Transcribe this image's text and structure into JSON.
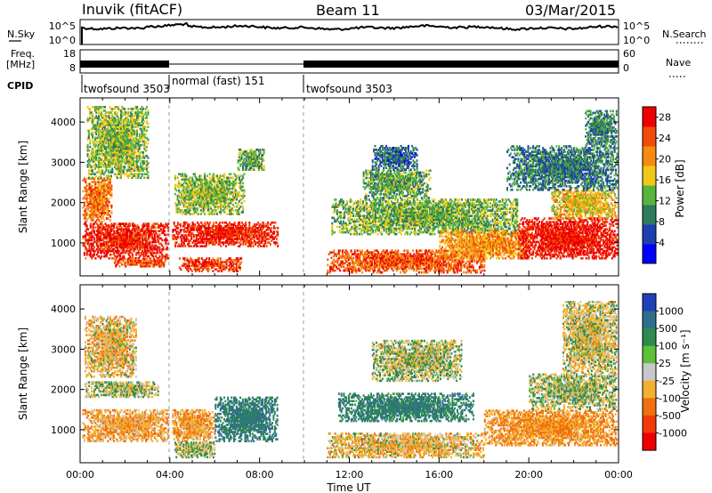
{
  "header": {
    "station": "Inuvik (fitACF)",
    "beam": "Beam 11",
    "date": "03/Mar/2015"
  },
  "left_labels": {
    "nsky": "N.Sky",
    "freq": "Freq.",
    "freq_unit": "[MHz]",
    "cpid": "CPID"
  },
  "right_labels": {
    "nsearch": "N.Search",
    "nave": "Nave"
  },
  "nsky_ticks": [
    "10^5",
    "10^0"
  ],
  "nsearch_ticks": [
    "10^5",
    "10^0"
  ],
  "freq_ticks": [
    "18",
    "8"
  ],
  "nave_ticks": [
    "60",
    "0"
  ],
  "cpid_segments": [
    {
      "label": "twofsound 3503",
      "start_hour": 0.0,
      "end_hour": 4.0
    },
    {
      "label": "normal (fast) 151",
      "start_hour": 4.0,
      "end_hour": 10.0
    },
    {
      "label": "twofsound 3503",
      "start_hour": 10.0,
      "end_hour": 24.0
    }
  ],
  "chart_data": [
    {
      "type": "heatmap",
      "title": "",
      "parameter": "Power",
      "xlabel": "",
      "ylabel": "Slant Range [km]",
      "xlim_hours": [
        0,
        24
      ],
      "ylim_km": [
        180,
        4600
      ],
      "yticks": [
        1000,
        2000,
        3000,
        4000
      ],
      "colorbar": {
        "label": "Power [dB]",
        "ticks": [
          4,
          8,
          12,
          16,
          20,
          24,
          28
        ],
        "range": [
          0,
          30
        ],
        "colors": [
          "#0000ff",
          "#1f3fb0",
          "#2f7a5a",
          "#58b43c",
          "#f0c818",
          "#f58c10",
          "#f24a08",
          "#ee0000"
        ]
      },
      "regions": [
        {
          "t0": 0.1,
          "t1": 3.9,
          "r0": 600,
          "r1": 1500,
          "value": 27
        },
        {
          "t0": 0.1,
          "t1": 1.4,
          "r0": 1500,
          "r1": 2600,
          "value": 22
        },
        {
          "t0": 1.5,
          "t1": 3.8,
          "r0": 400,
          "r1": 600,
          "value": 24
        },
        {
          "t0": 0.3,
          "t1": 3.0,
          "r0": 2600,
          "r1": 4400,
          "value": 14
        },
        {
          "t0": 4.1,
          "t1": 8.8,
          "r0": 900,
          "r1": 1500,
          "value": 27
        },
        {
          "t0": 4.4,
          "t1": 7.2,
          "r0": 280,
          "r1": 600,
          "value": 26
        },
        {
          "t0": 4.2,
          "t1": 7.3,
          "r0": 1700,
          "r1": 2700,
          "value": 14
        },
        {
          "t0": 7.0,
          "t1": 8.2,
          "r0": 2800,
          "r1": 3300,
          "value": 12
        },
        {
          "t0": 11.2,
          "t1": 19.5,
          "r0": 1200,
          "r1": 2100,
          "value": 13
        },
        {
          "t0": 12.6,
          "t1": 15.6,
          "r0": 2100,
          "r1": 2800,
          "value": 12
        },
        {
          "t0": 11.0,
          "t1": 18.0,
          "r0": 250,
          "r1": 800,
          "value": 24
        },
        {
          "t0": 13.0,
          "t1": 15.0,
          "r0": 2800,
          "r1": 3400,
          "value": 8
        },
        {
          "t0": 16.0,
          "t1": 20.0,
          "r0": 600,
          "r1": 1300,
          "value": 20
        },
        {
          "t0": 19.5,
          "t1": 23.9,
          "r0": 600,
          "r1": 1600,
          "value": 28
        },
        {
          "t0": 21.0,
          "t1": 23.9,
          "r0": 1600,
          "r1": 2300,
          "value": 18
        },
        {
          "t0": 19.0,
          "t1": 23.9,
          "r0": 2300,
          "r1": 3400,
          "value": 9
        },
        {
          "t0": 22.5,
          "t1": 23.9,
          "r0": 3400,
          "r1": 4300,
          "value": 10
        }
      ]
    },
    {
      "type": "heatmap",
      "title": "",
      "parameter": "Velocity",
      "xlabel": "Time UT",
      "ylabel": "Slant Range [km]",
      "xlim_hours": [
        0,
        24
      ],
      "ylim_km": [
        180,
        4600
      ],
      "yticks": [
        1000,
        2000,
        3000,
        4000
      ],
      "xticks": [
        "00:00",
        "04:00",
        "08:00",
        "12:00",
        "16:00",
        "20:00",
        "00:00"
      ],
      "colorbar": {
        "label": "Velocity [m s⁻¹]",
        "ticks": [
          "1000",
          "500",
          "100",
          "25",
          "-25",
          "-100",
          "-500",
          "-1000"
        ],
        "colors": [
          "#2040b8",
          "#2f6f8a",
          "#2f8a50",
          "#5cc03a",
          "#c8c8c8",
          "#f2b030",
          "#f07010",
          "#f23a08",
          "#ee0000"
        ]
      },
      "regions": [
        {
          "t0": 0.1,
          "t1": 3.9,
          "r0": 700,
          "r1": 1500,
          "value": -250
        },
        {
          "t0": 0.2,
          "t1": 3.5,
          "r0": 1800,
          "r1": 2200,
          "value": 0
        },
        {
          "t0": 0.2,
          "t1": 2.5,
          "r0": 2300,
          "r1": 3800,
          "value": -150
        },
        {
          "t0": 4.1,
          "t1": 6.0,
          "r0": 700,
          "r1": 1500,
          "value": -250
        },
        {
          "t0": 6.0,
          "t1": 8.8,
          "r0": 700,
          "r1": 1800,
          "value": 350
        },
        {
          "t0": 4.2,
          "t1": 6.0,
          "r0": 300,
          "r1": 700,
          "value": 0
        },
        {
          "t0": 11.5,
          "t1": 17.5,
          "r0": 1200,
          "r1": 1900,
          "value": 300
        },
        {
          "t0": 13.0,
          "t1": 17.0,
          "r0": 2200,
          "r1": 3200,
          "value": 0
        },
        {
          "t0": 11.0,
          "t1": 18.0,
          "r0": 300,
          "r1": 900,
          "value": -150
        },
        {
          "t0": 18.0,
          "t1": 23.9,
          "r0": 600,
          "r1": 1500,
          "value": -300
        },
        {
          "t0": 20.0,
          "t1": 23.9,
          "r0": 1500,
          "r1": 2400,
          "value": 0
        },
        {
          "t0": 21.5,
          "t1": 23.9,
          "r0": 2400,
          "r1": 4200,
          "value": -80
        }
      ]
    }
  ]
}
